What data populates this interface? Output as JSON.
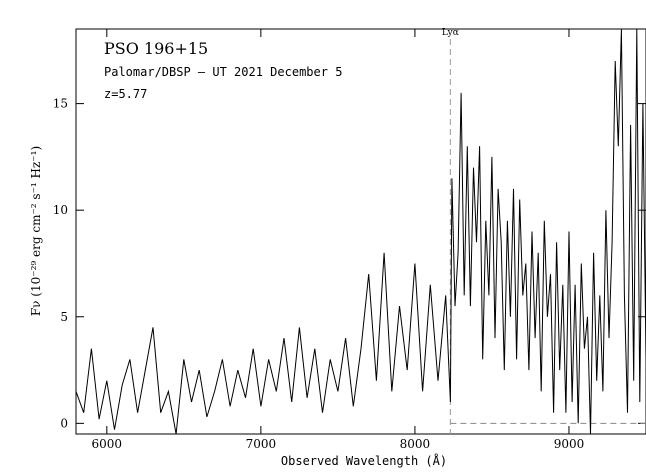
{
  "chart_data": {
    "type": "line",
    "title": "PSO 196+15",
    "annotations": [
      "Palomar/DBSP – UT 2021 December 5",
      "z=5.77"
    ],
    "xlabel": "Observed Wavelength (Å)",
    "ylabel": "Fν (10⁻²⁹ erg cm⁻² s⁻¹ Hz⁻¹)",
    "xlim": [
      5800,
      9500
    ],
    "ylim": [
      -0.5,
      18.5
    ],
    "x_ticks": [
      6000,
      7000,
      8000,
      9000
    ],
    "y_ticks": [
      0,
      5,
      10,
      15
    ],
    "grid": false,
    "lya": {
      "label": "Lyα",
      "wavelength": 8230
    },
    "zero_line": 0,
    "series": [
      {
        "x": [
          5800,
          5850,
          5900,
          5950,
          6000,
          6050,
          6100,
          6150,
          6200,
          6250,
          6300,
          6350,
          6400,
          6450,
          6500,
          6550,
          6600,
          6650,
          6700,
          6750,
          6800,
          6850,
          6900,
          6950,
          7000,
          7050,
          7100,
          7150,
          7200,
          7250,
          7300,
          7350,
          7400,
          7450,
          7500,
          7550,
          7600,
          7650,
          7700,
          7750,
          7800,
          7850,
          7900,
          7950,
          8000,
          8050,
          8100,
          8150,
          8200,
          8230,
          8240,
          8260,
          8280,
          8300,
          8320,
          8340,
          8360,
          8380,
          8400,
          8420,
          8440,
          8460,
          8480,
          8500,
          8520,
          8540,
          8560,
          8580,
          8600,
          8620,
          8640,
          8660,
          8680,
          8700,
          8720,
          8740,
          8760,
          8780,
          8800,
          8820,
          8840,
          8860,
          8880,
          8900,
          8920,
          8940,
          8960,
          8980,
          9000,
          9020,
          9040,
          9060,
          9080,
          9100,
          9120,
          9140,
          9160,
          9180,
          9200,
          9220,
          9240,
          9260,
          9280,
          9300,
          9320,
          9340,
          9360,
          9380,
          9400,
          9420,
          9440,
          9460,
          9480,
          9500
        ],
        "values": [
          1.5,
          0.5,
          3.5,
          0.2,
          2.0,
          -0.3,
          1.8,
          3.0,
          0.5,
          2.5,
          4.5,
          0.5,
          1.5,
          -0.5,
          3.0,
          1.0,
          2.5,
          0.3,
          1.5,
          3.0,
          0.8,
          2.5,
          1.2,
          3.5,
          0.8,
          3.0,
          1.5,
          4.0,
          1.0,
          4.5,
          1.2,
          3.5,
          0.5,
          3.0,
          1.5,
          4.0,
          0.8,
          3.5,
          7.0,
          2.0,
          8.0,
          1.5,
          5.5,
          2.5,
          7.5,
          1.5,
          6.5,
          2.0,
          6.0,
          1.0,
          11.5,
          5.5,
          8.0,
          15.5,
          6.0,
          13.0,
          5.5,
          12.0,
          8.5,
          13.0,
          3.0,
          9.5,
          6.0,
          12.5,
          4.0,
          11.0,
          8.5,
          2.5,
          9.5,
          5.0,
          11.0,
          3.0,
          10.5,
          6.0,
          7.5,
          2.5,
          9.0,
          4.0,
          8.0,
          1.5,
          9.5,
          5.0,
          7.0,
          0.5,
          8.5,
          2.5,
          6.5,
          0.5,
          9.0,
          1.0,
          6.5,
          0.0,
          7.5,
          3.5,
          5.0,
          -0.5,
          8.0,
          2.0,
          6.0,
          1.5,
          10.0,
          4.0,
          8.5,
          17.0,
          13.0,
          18.5,
          6.0,
          0.5,
          14.0,
          2.0,
          18.5,
          1.0,
          15.0,
          3.0
        ]
      }
    ]
  }
}
